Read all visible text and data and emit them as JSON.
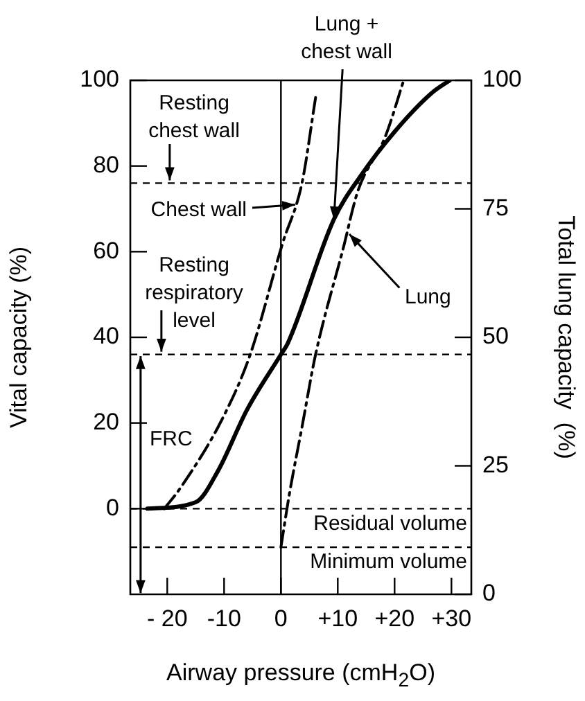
{
  "chart_data": {
    "type": "line",
    "xlabel": "Airway pressure (cmH$_{2}$O)",
    "ylabel": "Vital capacity (%)",
    "y2label": "Total lung capacity  (%)",
    "xlim": [
      -26.5,
      33.5
    ],
    "xticks": [
      {
        "value": -20,
        "label": "- 20"
      },
      -10,
      0,
      {
        "value": 10,
        "label": "+10"
      },
      {
        "value": 20,
        "label": "+20"
      },
      {
        "value": 30,
        "label": "+30"
      }
    ],
    "ylim": [
      -20,
      100
    ],
    "yticks": [
      0,
      20,
      40,
      60,
      80,
      100
    ],
    "y2lim": [
      0,
      100
    ],
    "y2ticks": [
      0,
      25,
      50,
      75,
      100
    ],
    "grid": false,
    "legend": false,
    "marker": "none",
    "series": [
      {
        "color": "#000000",
        "line_style": "solid",
        "x": [
          -23.5,
          -15,
          -11,
          -6,
          0,
          1.2,
          9.3,
          14.2,
          20,
          26.5,
          29.7
        ],
        "values": [
          0,
          1.5,
          9,
          23,
          36,
          38.6,
          67.5,
          78,
          88,
          97,
          100
        ]
      },
      {
        "color": "#000000",
        "line_style": "dashdot",
        "x": [
          -20.5,
          -17.6,
          -10.3,
          -5.4,
          0.3,
          3.7,
          6.1
        ],
        "values": [
          0,
          5,
          21,
          36,
          62,
          76,
          96
        ]
      },
      {
        "color": "#000000",
        "line_style": "dashdot",
        "x": [
          0,
          1.5,
          3.7,
          6.1,
          11,
          13.5,
          18.4,
          21.6
        ],
        "values": [
          -9,
          3.5,
          19,
          36,
          61,
          74,
          87,
          100
        ]
      }
    ],
    "ref_lines": [
      {
        "axis": "y",
        "value": 76,
        "label": "Resting chest wall",
        "line_style": "dashed"
      },
      {
        "axis": "y",
        "value": 36,
        "label": "Resting respiratory level",
        "line_style": "dashed"
      },
      {
        "axis": "y",
        "value": 0,
        "label": "Residual volume",
        "line_style": "dashed"
      },
      {
        "axis": "y",
        "value": -9,
        "label": "Minimum volume",
        "line_style": "dashed"
      },
      {
        "axis": "x",
        "value": 0,
        "line_style": "solid"
      }
    ],
    "annotations": [
      {
        "text": "Lung + chest wall",
        "x": 9.3,
        "y": 67.5
      },
      {
        "text": "Chest wall",
        "x": 2.5,
        "y": 71
      },
      {
        "text": "Lung",
        "x": 12,
        "y": 64
      },
      "FRC"
    ]
  }
}
